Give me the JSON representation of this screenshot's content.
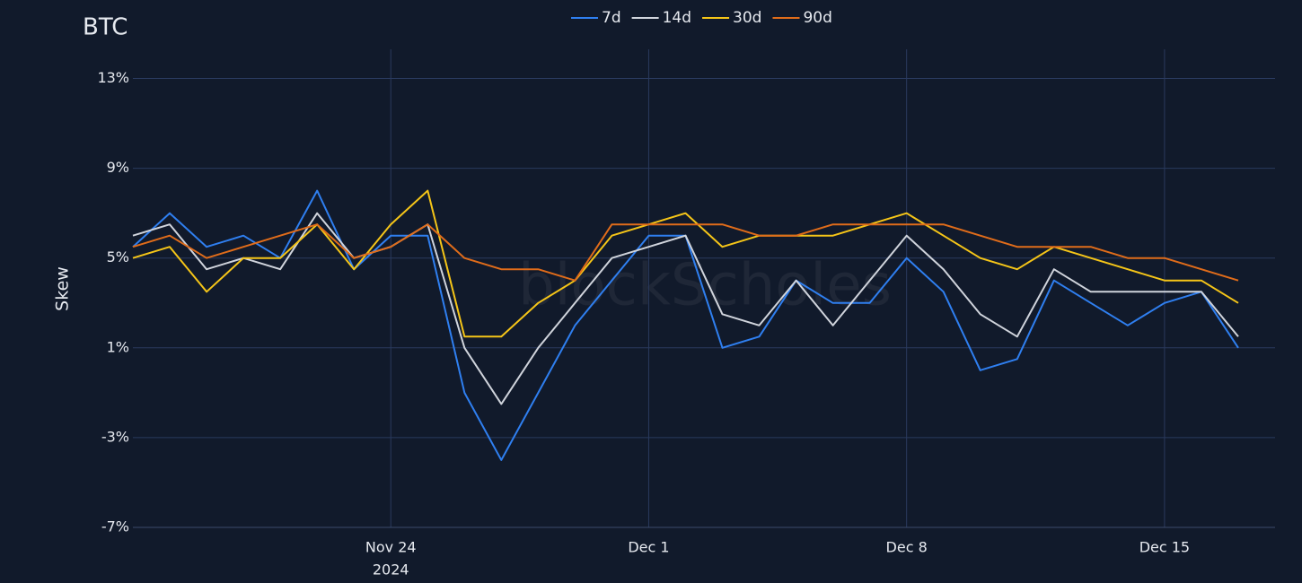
{
  "chart_data": {
    "type": "line",
    "title": "BTC",
    "y_label": "Skew",
    "watermark": "blockScholes",
    "x_axis_year": "2024",
    "x": [
      "2024-11-17",
      "2024-11-18",
      "2024-11-19",
      "2024-11-20",
      "2024-11-21",
      "2024-11-22",
      "2024-11-23",
      "2024-11-24",
      "2024-11-25",
      "2024-11-26",
      "2024-11-27",
      "2024-11-28",
      "2024-11-29",
      "2024-11-30",
      "2024-12-01",
      "2024-12-02",
      "2024-12-03",
      "2024-12-04",
      "2024-12-05",
      "2024-12-06",
      "2024-12-07",
      "2024-12-08",
      "2024-12-09",
      "2024-12-10",
      "2024-12-11",
      "2024-12-12",
      "2024-12-13",
      "2024-12-14",
      "2024-12-15",
      "2024-12-16",
      "2024-12-17"
    ],
    "series": [
      {
        "name": "7d",
        "color": "#2f7ff0",
        "values": [
          5.5,
          7,
          5.5,
          6,
          5,
          8,
          4.5,
          6,
          6,
          -1,
          -4,
          -1,
          2,
          4,
          6,
          6,
          1,
          1.5,
          4,
          3,
          3,
          5,
          3.5,
          0,
          0.5,
          4,
          3,
          2,
          3,
          3.5,
          1
        ]
      },
      {
        "name": "14d",
        "color": "#d0d4dc",
        "values": [
          6,
          6.5,
          4.5,
          5,
          4.5,
          7,
          5,
          5.5,
          6.5,
          1,
          -1.5,
          1,
          3,
          5,
          5.5,
          6,
          2.5,
          2,
          4,
          2,
          4,
          6,
          4.5,
          2.5,
          1.5,
          4.5,
          3.5,
          3.5,
          3.5,
          3.5,
          1.5
        ]
      },
      {
        "name": "30d",
        "color": "#f5c518",
        "values": [
          5,
          5.5,
          3.5,
          5,
          5,
          6.5,
          4.5,
          6.5,
          8,
          1.5,
          1.5,
          3,
          4,
          6,
          6.5,
          7,
          5.5,
          6,
          6,
          6,
          6.5,
          7,
          6,
          5,
          4.5,
          5.5,
          5,
          4.5,
          4,
          4,
          3
        ]
      },
      {
        "name": "90d",
        "color": "#e06c1a",
        "values": [
          5.5,
          6,
          5,
          5.5,
          6,
          6.5,
          5,
          5.5,
          6.5,
          5,
          4.5,
          4.5,
          4,
          6.5,
          6.5,
          6.5,
          6.5,
          6,
          6,
          6.5,
          6.5,
          6.5,
          6.5,
          6,
          5.5,
          5.5,
          5.5,
          5,
          5,
          4.5,
          4
        ]
      }
    ],
    "xlim": [
      "2024-11-17",
      "2024-12-18"
    ],
    "xticks": [
      {
        "value": "2024-11-24",
        "label": "Nov 24"
      },
      {
        "value": "2024-12-01",
        "label": "Dec 1"
      },
      {
        "value": "2024-12-08",
        "label": "Dec 8"
      },
      {
        "value": "2024-12-15",
        "label": "Dec 15"
      }
    ],
    "ylim": [
      -7,
      14.3
    ],
    "yticks": [
      {
        "value": -7,
        "label": "-7%"
      },
      {
        "value": -3,
        "label": "-3%"
      },
      {
        "value": 1,
        "label": "1%"
      },
      {
        "value": 5,
        "label": "5%"
      },
      {
        "value": 9,
        "label": "9%"
      },
      {
        "value": 13,
        "label": "13%"
      }
    ],
    "grid": true,
    "legend": "top"
  }
}
